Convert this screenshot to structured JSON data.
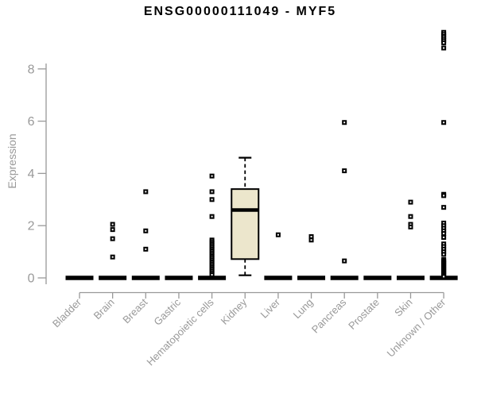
{
  "page": {
    "background": "#FFFFFF"
  },
  "chart_data": {
    "type": "boxplot",
    "title": "ENSG00000111049 - MYF5",
    "xlabel": "",
    "ylabel": "Expression",
    "ylim": [
      0,
      9.5
    ],
    "yticks": [
      0,
      2,
      4,
      6,
      8
    ],
    "grid": false,
    "legend": "none",
    "categories": [
      "Bladder",
      "Brain",
      "Breast",
      "Gastric",
      "Hematopoietic cells",
      "Kidney",
      "Liver",
      "Lung",
      "Pancreas",
      "Prostate",
      "Skin",
      "Unknown / Other"
    ],
    "boxes": [
      {
        "category": "Bladder",
        "low": 0,
        "q1": 0,
        "median": 0,
        "q3": 0,
        "high": 0,
        "outliers": []
      },
      {
        "category": "Brain",
        "low": 0,
        "q1": 0,
        "median": 0,
        "q3": 0,
        "high": 0,
        "outliers": [
          2.05,
          1.85,
          1.5,
          0.8
        ]
      },
      {
        "category": "Breast",
        "low": 0,
        "q1": 0,
        "median": 0,
        "q3": 0,
        "high": 0,
        "outliers": [
          3.3,
          1.8,
          1.1
        ]
      },
      {
        "category": "Gastric",
        "low": 0,
        "q1": 0,
        "median": 0,
        "q3": 0,
        "high": 0,
        "outliers": []
      },
      {
        "category": "Hematopoietic cells",
        "low": 0,
        "q1": 0,
        "median": 0,
        "q3": 0,
        "high": 0,
        "outliers": [
          3.9,
          3.3,
          3.0,
          2.35,
          1.45,
          1.38,
          1.31,
          1.24,
          1.17,
          1.1,
          1.03,
          0.96,
          0.89,
          0.82,
          0.75,
          0.68,
          0.61,
          0.54,
          0.47,
          0.4,
          0.33,
          0.26,
          0.19,
          0.12
        ]
      },
      {
        "category": "Kidney",
        "low": 0.1,
        "q1": 0.72,
        "median": 2.6,
        "q3": 3.4,
        "high": 4.6,
        "outliers": []
      },
      {
        "category": "Liver",
        "low": 0,
        "q1": 0,
        "median": 0,
        "q3": 0,
        "high": 0,
        "outliers": [
          1.65
        ]
      },
      {
        "category": "Lung",
        "low": 0,
        "q1": 0,
        "median": 0,
        "q3": 0,
        "high": 0,
        "outliers": [
          1.58,
          1.45
        ]
      },
      {
        "category": "Pancreas",
        "low": 0,
        "q1": 0,
        "median": 0,
        "q3": 0,
        "high": 0,
        "outliers": [
          5.95,
          4.1,
          0.65
        ]
      },
      {
        "category": "Prostate",
        "low": 0,
        "q1": 0,
        "median": 0,
        "q3": 0,
        "high": 0,
        "outliers": []
      },
      {
        "category": "Skin",
        "low": 0,
        "q1": 0,
        "median": 0,
        "q3": 0,
        "high": 0,
        "outliers": [
          2.9,
          2.35,
          2.05,
          1.95
        ]
      },
      {
        "category": "Unknown / Other",
        "low": 0,
        "q1": 0,
        "median": 0,
        "q3": 0,
        "high": 0,
        "outliers": [
          9.4,
          9.32,
          9.24,
          9.16,
          9.08,
          9.0,
          8.8,
          5.95,
          3.2,
          3.15,
          2.7,
          2.1,
          2.0,
          1.9,
          1.8,
          1.7,
          1.55,
          1.3,
          1.2,
          1.1,
          1.0,
          0.9,
          0.7,
          0.65,
          0.6,
          0.55,
          0.5,
          0.45,
          0.4,
          0.35,
          0.3,
          0.25,
          0.2,
          0.15,
          0.1,
          0.05
        ]
      }
    ],
    "colors": {
      "axis": "#999999",
      "tick_label": "#999999",
      "title": "#000000",
      "box_fill": "#ECE6CC",
      "box_border": "#000000",
      "median": "#000000",
      "outlier": "#000000",
      "background": "#FFFFFF"
    }
  }
}
